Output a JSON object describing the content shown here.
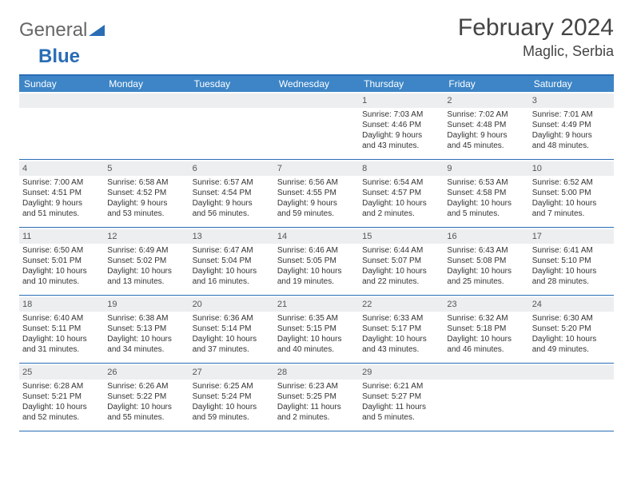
{
  "logo": {
    "text1": "General",
    "text2": "Blue"
  },
  "title": "February 2024",
  "location": "Maglic, Serbia",
  "day_headers": [
    "Sunday",
    "Monday",
    "Tuesday",
    "Wednesday",
    "Thursday",
    "Friday",
    "Saturday"
  ],
  "colors": {
    "header_bg": "#3d85c6",
    "border": "#2a6db5",
    "daynum_bg": "#eceef0"
  },
  "weeks": [
    [
      {
        "day": "",
        "lines": []
      },
      {
        "day": "",
        "lines": []
      },
      {
        "day": "",
        "lines": []
      },
      {
        "day": "",
        "lines": []
      },
      {
        "day": "1",
        "lines": [
          "Sunrise: 7:03 AM",
          "Sunset: 4:46 PM",
          "Daylight: 9 hours",
          "and 43 minutes."
        ]
      },
      {
        "day": "2",
        "lines": [
          "Sunrise: 7:02 AM",
          "Sunset: 4:48 PM",
          "Daylight: 9 hours",
          "and 45 minutes."
        ]
      },
      {
        "day": "3",
        "lines": [
          "Sunrise: 7:01 AM",
          "Sunset: 4:49 PM",
          "Daylight: 9 hours",
          "and 48 minutes."
        ]
      }
    ],
    [
      {
        "day": "4",
        "lines": [
          "Sunrise: 7:00 AM",
          "Sunset: 4:51 PM",
          "Daylight: 9 hours",
          "and 51 minutes."
        ]
      },
      {
        "day": "5",
        "lines": [
          "Sunrise: 6:58 AM",
          "Sunset: 4:52 PM",
          "Daylight: 9 hours",
          "and 53 minutes."
        ]
      },
      {
        "day": "6",
        "lines": [
          "Sunrise: 6:57 AM",
          "Sunset: 4:54 PM",
          "Daylight: 9 hours",
          "and 56 minutes."
        ]
      },
      {
        "day": "7",
        "lines": [
          "Sunrise: 6:56 AM",
          "Sunset: 4:55 PM",
          "Daylight: 9 hours",
          "and 59 minutes."
        ]
      },
      {
        "day": "8",
        "lines": [
          "Sunrise: 6:54 AM",
          "Sunset: 4:57 PM",
          "Daylight: 10 hours",
          "and 2 minutes."
        ]
      },
      {
        "day": "9",
        "lines": [
          "Sunrise: 6:53 AM",
          "Sunset: 4:58 PM",
          "Daylight: 10 hours",
          "and 5 minutes."
        ]
      },
      {
        "day": "10",
        "lines": [
          "Sunrise: 6:52 AM",
          "Sunset: 5:00 PM",
          "Daylight: 10 hours",
          "and 7 minutes."
        ]
      }
    ],
    [
      {
        "day": "11",
        "lines": [
          "Sunrise: 6:50 AM",
          "Sunset: 5:01 PM",
          "Daylight: 10 hours",
          "and 10 minutes."
        ]
      },
      {
        "day": "12",
        "lines": [
          "Sunrise: 6:49 AM",
          "Sunset: 5:02 PM",
          "Daylight: 10 hours",
          "and 13 minutes."
        ]
      },
      {
        "day": "13",
        "lines": [
          "Sunrise: 6:47 AM",
          "Sunset: 5:04 PM",
          "Daylight: 10 hours",
          "and 16 minutes."
        ]
      },
      {
        "day": "14",
        "lines": [
          "Sunrise: 6:46 AM",
          "Sunset: 5:05 PM",
          "Daylight: 10 hours",
          "and 19 minutes."
        ]
      },
      {
        "day": "15",
        "lines": [
          "Sunrise: 6:44 AM",
          "Sunset: 5:07 PM",
          "Daylight: 10 hours",
          "and 22 minutes."
        ]
      },
      {
        "day": "16",
        "lines": [
          "Sunrise: 6:43 AM",
          "Sunset: 5:08 PM",
          "Daylight: 10 hours",
          "and 25 minutes."
        ]
      },
      {
        "day": "17",
        "lines": [
          "Sunrise: 6:41 AM",
          "Sunset: 5:10 PM",
          "Daylight: 10 hours",
          "and 28 minutes."
        ]
      }
    ],
    [
      {
        "day": "18",
        "lines": [
          "Sunrise: 6:40 AM",
          "Sunset: 5:11 PM",
          "Daylight: 10 hours",
          "and 31 minutes."
        ]
      },
      {
        "day": "19",
        "lines": [
          "Sunrise: 6:38 AM",
          "Sunset: 5:13 PM",
          "Daylight: 10 hours",
          "and 34 minutes."
        ]
      },
      {
        "day": "20",
        "lines": [
          "Sunrise: 6:36 AM",
          "Sunset: 5:14 PM",
          "Daylight: 10 hours",
          "and 37 minutes."
        ]
      },
      {
        "day": "21",
        "lines": [
          "Sunrise: 6:35 AM",
          "Sunset: 5:15 PM",
          "Daylight: 10 hours",
          "and 40 minutes."
        ]
      },
      {
        "day": "22",
        "lines": [
          "Sunrise: 6:33 AM",
          "Sunset: 5:17 PM",
          "Daylight: 10 hours",
          "and 43 minutes."
        ]
      },
      {
        "day": "23",
        "lines": [
          "Sunrise: 6:32 AM",
          "Sunset: 5:18 PM",
          "Daylight: 10 hours",
          "and 46 minutes."
        ]
      },
      {
        "day": "24",
        "lines": [
          "Sunrise: 6:30 AM",
          "Sunset: 5:20 PM",
          "Daylight: 10 hours",
          "and 49 minutes."
        ]
      }
    ],
    [
      {
        "day": "25",
        "lines": [
          "Sunrise: 6:28 AM",
          "Sunset: 5:21 PM",
          "Daylight: 10 hours",
          "and 52 minutes."
        ]
      },
      {
        "day": "26",
        "lines": [
          "Sunrise: 6:26 AM",
          "Sunset: 5:22 PM",
          "Daylight: 10 hours",
          "and 55 minutes."
        ]
      },
      {
        "day": "27",
        "lines": [
          "Sunrise: 6:25 AM",
          "Sunset: 5:24 PM",
          "Daylight: 10 hours",
          "and 59 minutes."
        ]
      },
      {
        "day": "28",
        "lines": [
          "Sunrise: 6:23 AM",
          "Sunset: 5:25 PM",
          "Daylight: 11 hours",
          "and 2 minutes."
        ]
      },
      {
        "day": "29",
        "lines": [
          "Sunrise: 6:21 AM",
          "Sunset: 5:27 PM",
          "Daylight: 11 hours",
          "and 5 minutes."
        ]
      },
      {
        "day": "",
        "lines": []
      },
      {
        "day": "",
        "lines": []
      }
    ]
  ]
}
